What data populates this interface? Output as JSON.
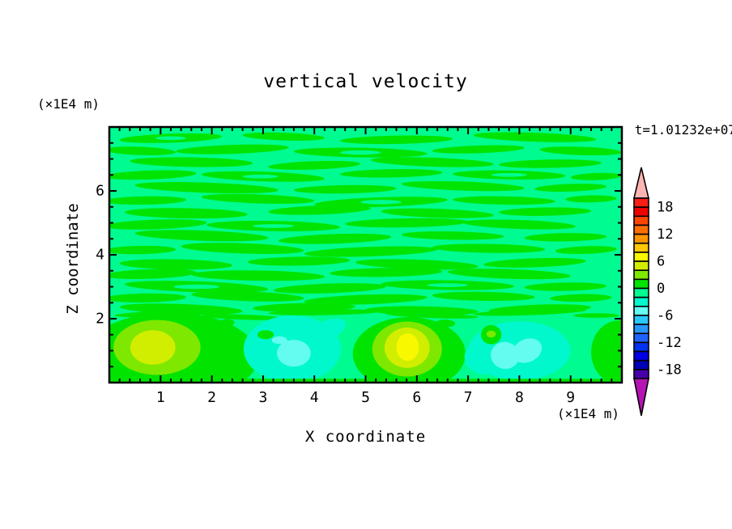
{
  "title": "vertical velocity",
  "timestamp": "t=1.01232e+07",
  "axes": {
    "x": {
      "label": "X coordinate",
      "unit": "(×1E4 m)",
      "range": [
        0,
        10
      ],
      "major_ticks": [
        1,
        2,
        3,
        4,
        5,
        6,
        7,
        8,
        9
      ],
      "tick_labels": [
        "1",
        "2",
        "3",
        "4",
        "5",
        "6",
        "7",
        "8",
        "9"
      ],
      "minor_step": 0.2
    },
    "z": {
      "label": "Z coordinate",
      "unit": "(×1E4 m)",
      "range": [
        0,
        8
      ],
      "major_ticks": [
        2,
        4,
        6
      ],
      "tick_labels": [
        "2",
        "4",
        "6"
      ],
      "minor_step": 0.5
    }
  },
  "colorbar": {
    "min": -20,
    "max": 20,
    "step": 2,
    "label_values": [
      18,
      12,
      6,
      0,
      -6,
      -12,
      -18
    ],
    "labels": [
      "18",
      "12",
      "6",
      "0",
      "-6",
      "-12",
      "-18"
    ],
    "colors_top_to_bottom": [
      "#fa1e14",
      "#f00000",
      "#ff4600",
      "#ff6e00",
      "#ff9600",
      "#ffc800",
      "#f8f800",
      "#d2ee00",
      "#7ee800",
      "#00e400",
      "#00fb90",
      "#00f8cc",
      "#64fcf0",
      "#28c8ff",
      "#2896ff",
      "#1e64ff",
      "#0032f0",
      "#0000e6",
      "#0000b4",
      "#4600aa"
    ],
    "over_color": "#ffb4b4",
    "under_color": "#b414b4"
  },
  "chart_data": {
    "type": "heatmap",
    "subtype": "filled_contour",
    "title": "vertical velocity",
    "xlabel": "X coordinate (×1E4 m)",
    "ylabel": "Z coordinate (×1E4 m)",
    "xlim": [
      0,
      10
    ],
    "ylim": [
      0,
      8
    ],
    "contour_interval": 2,
    "value_range_shown": [
      -20,
      20
    ],
    "annotation": "t=1.01232e+07",
    "legend_position": "right-colorbar",
    "grid": false,
    "background_band": "-2..0 (spring green) with 0..2 (green) streaks",
    "palette_index_key": "0=[18,20] ... 19=[-20,-18]",
    "bottom_features": [
      {
        "shape": "ellipse",
        "x": 1.2,
        "z": 0.8,
        "rx": 1.7,
        "ry": 1.4,
        "rot": 0,
        "c": 9,
        "note": "updraft green zone lower-left"
      },
      {
        "shape": "ellipse",
        "x": 0.93,
        "z": 1.1,
        "rx": 0.85,
        "ry": 0.86,
        "rot": 0,
        "c": 8,
        "note": "w=2..4"
      },
      {
        "shape": "ellipse",
        "x": 0.85,
        "z": 1.1,
        "rx": 0.44,
        "ry": 0.54,
        "rot": 0,
        "c": 7,
        "note": "w=4..6 core"
      },
      {
        "shape": "ellipse",
        "x": 3.57,
        "z": 1.05,
        "rx": 0.95,
        "ry": 1.05,
        "rot": 0,
        "c": 11,
        "note": "downdraft w=-4..-2"
      },
      {
        "shape": "ellipse",
        "x": 4.15,
        "z": 1.55,
        "rx": 0.5,
        "ry": 0.33,
        "rot": -25,
        "c": 11
      },
      {
        "shape": "ellipse",
        "x": 3.6,
        "z": 0.92,
        "rx": 0.33,
        "ry": 0.42,
        "rot": 0,
        "c": 12,
        "note": "w=-6..-4 core"
      },
      {
        "shape": "ellipse",
        "x": 3.32,
        "z": 1.33,
        "rx": 0.15,
        "ry": 0.12,
        "rot": 0,
        "c": 12
      },
      {
        "shape": "ellipse",
        "x": 5.85,
        "z": 0.9,
        "rx": 1.1,
        "ry": 1.15,
        "rot": 0,
        "c": 9,
        "note": "updraft green zone center"
      },
      {
        "shape": "ellipse",
        "x": 5.81,
        "z": 1.05,
        "rx": 0.68,
        "ry": 0.86,
        "rot": 0,
        "c": 8
      },
      {
        "shape": "ellipse",
        "x": 5.81,
        "z": 1.09,
        "rx": 0.44,
        "ry": 0.63,
        "rot": 0,
        "c": 7
      },
      {
        "shape": "ellipse",
        "x": 5.82,
        "z": 1.11,
        "rx": 0.22,
        "ry": 0.43,
        "rot": 0,
        "c": 6,
        "note": "w=6..8 yellow core"
      },
      {
        "shape": "ellipse",
        "x": 8.0,
        "z": 1.0,
        "rx": 1.0,
        "ry": 0.92,
        "rot": 0,
        "c": 11,
        "note": "downdraft right"
      },
      {
        "shape": "ellipse",
        "x": 7.35,
        "z": 0.8,
        "rx": 0.42,
        "ry": 0.55,
        "rot": 0,
        "c": 11
      },
      {
        "shape": "ellipse",
        "x": 7.72,
        "z": 0.85,
        "rx": 0.28,
        "ry": 0.42,
        "rot": 15,
        "c": 12
      },
      {
        "shape": "ellipse",
        "x": 8.15,
        "z": 1.0,
        "rx": 0.3,
        "ry": 0.36,
        "rot": -25,
        "c": 12
      },
      {
        "shape": "ellipse",
        "x": 9.95,
        "z": 0.95,
        "rx": 0.55,
        "ry": 1.0,
        "rot": 0,
        "c": 9,
        "note": "green at right edge"
      },
      {
        "shape": "ellipse",
        "x": 7.45,
        "z": 1.5,
        "rx": 0.2,
        "ry": 0.3,
        "rot": 0,
        "c": 9
      },
      {
        "shape": "ellipse",
        "x": 7.45,
        "z": 1.52,
        "rx": 0.09,
        "ry": 0.11,
        "rot": 0,
        "c": 8
      },
      {
        "shape": "ellipse",
        "x": 2.3,
        "z": 1.88,
        "rx": 0.14,
        "ry": 0.11,
        "rot": 0,
        "c": 9
      },
      {
        "shape": "ellipse",
        "x": 3.05,
        "z": 1.5,
        "rx": 0.16,
        "ry": 0.14,
        "rot": 0,
        "c": 9
      },
      {
        "shape": "ellipse",
        "x": 6.55,
        "z": 1.85,
        "rx": 0.2,
        "ry": 0.12,
        "rot": 0,
        "c": 9
      },
      {
        "shape": "rect",
        "x": 5.0,
        "z": 0.05,
        "rx": 5.0,
        "ry": 0.07,
        "rot": 0,
        "c": 9,
        "note": "green strip along bottom boundary"
      }
    ],
    "transition_filaments": [
      [
        1.0,
        2.15,
        0.9,
        0.09,
        -2
      ],
      [
        2.6,
        2.05,
        0.8,
        0.08,
        2
      ],
      [
        4.2,
        2.2,
        1.1,
        0.09,
        -1
      ],
      [
        6.3,
        2.1,
        0.9,
        0.08,
        2
      ],
      [
        8.2,
        2.2,
        1.1,
        0.09,
        -2
      ],
      [
        9.5,
        2.1,
        0.45,
        0.07,
        0
      ]
    ],
    "streaks": [
      [
        1.2,
        7.65,
        1.0,
        0.14,
        -2
      ],
      [
        3.4,
        7.7,
        0.8,
        0.12,
        2
      ],
      [
        5.6,
        7.6,
        1.1,
        0.13,
        -1
      ],
      [
        8.3,
        7.68,
        1.2,
        0.14,
        2
      ],
      [
        0.6,
        7.25,
        0.7,
        0.13,
        2
      ],
      [
        2.4,
        7.3,
        1.1,
        0.14,
        -2
      ],
      [
        4.9,
        7.2,
        1.3,
        0.15,
        1
      ],
      [
        7.2,
        7.3,
        0.9,
        0.12,
        -2
      ],
      [
        9.2,
        7.25,
        0.8,
        0.13,
        2
      ],
      [
        1.6,
        6.9,
        1.2,
        0.15,
        1
      ],
      [
        4.0,
        6.8,
        0.9,
        0.13,
        -2
      ],
      [
        6.3,
        6.9,
        1.2,
        0.14,
        2
      ],
      [
        8.6,
        6.85,
        1.0,
        0.13,
        -1
      ],
      [
        0.8,
        6.5,
        0.9,
        0.14,
        -2
      ],
      [
        3.0,
        6.45,
        1.2,
        0.15,
        2
      ],
      [
        5.5,
        6.55,
        1.0,
        0.13,
        -1
      ],
      [
        7.8,
        6.5,
        1.1,
        0.14,
        1
      ],
      [
        9.5,
        6.45,
        0.5,
        0.11,
        -2
      ],
      [
        1.9,
        6.1,
        1.4,
        0.16,
        2
      ],
      [
        4.6,
        6.05,
        1.0,
        0.13,
        -1
      ],
      [
        6.9,
        6.15,
        1.2,
        0.14,
        2
      ],
      [
        9.0,
        6.1,
        0.7,
        0.12,
        -2
      ],
      [
        0.7,
        5.7,
        0.8,
        0.13,
        -1
      ],
      [
        2.9,
        5.75,
        1.1,
        0.14,
        2
      ],
      [
        5.3,
        5.65,
        1.3,
        0.15,
        -2
      ],
      [
        7.7,
        5.7,
        1.0,
        0.13,
        1
      ],
      [
        9.4,
        5.75,
        0.5,
        0.11,
        -1
      ],
      [
        1.5,
        5.3,
        1.2,
        0.16,
        1
      ],
      [
        4.1,
        5.4,
        1.0,
        0.14,
        -2
      ],
      [
        6.4,
        5.3,
        1.1,
        0.14,
        2
      ],
      [
        8.5,
        5.35,
        0.9,
        0.13,
        -1
      ],
      [
        0.9,
        4.95,
        1.0,
        0.15,
        -2
      ],
      [
        3.2,
        4.9,
        1.3,
        0.16,
        1
      ],
      [
        5.8,
        5.0,
        1.2,
        0.14,
        -1
      ],
      [
        8.0,
        4.95,
        1.1,
        0.14,
        2
      ],
      [
        1.8,
        4.6,
        1.3,
        0.16,
        2
      ],
      [
        4.4,
        4.5,
        1.1,
        0.15,
        -2
      ],
      [
        6.7,
        4.6,
        1.0,
        0.13,
        1
      ],
      [
        8.9,
        4.55,
        0.8,
        0.13,
        -1
      ],
      [
        0.6,
        4.15,
        0.7,
        0.13,
        -1
      ],
      [
        2.6,
        4.2,
        1.2,
        0.16,
        2
      ],
      [
        5.1,
        4.1,
        1.3,
        0.15,
        -2
      ],
      [
        7.4,
        4.2,
        1.1,
        0.14,
        1
      ],
      [
        9.3,
        4.15,
        0.6,
        0.12,
        -2
      ],
      [
        1.3,
        3.7,
        1.1,
        0.16,
        1
      ],
      [
        3.7,
        3.8,
        1.0,
        0.14,
        -1
      ],
      [
        6.0,
        3.7,
        1.2,
        0.15,
        2
      ],
      [
        8.3,
        3.75,
        1.0,
        0.14,
        -2
      ],
      [
        0.8,
        3.4,
        0.9,
        0.15,
        -2
      ],
      [
        2.9,
        3.35,
        1.3,
        0.16,
        1
      ],
      [
        5.4,
        3.45,
        1.1,
        0.14,
        -1
      ],
      [
        7.8,
        3.4,
        1.2,
        0.15,
        2
      ],
      [
        1.7,
        3.0,
        1.4,
        0.17,
        2
      ],
      [
        4.3,
        2.95,
        1.1,
        0.15,
        -2
      ],
      [
        6.6,
        3.05,
        1.3,
        0.15,
        1
      ],
      [
        8.9,
        3.0,
        0.8,
        0.13,
        -1
      ],
      [
        0.7,
        2.65,
        0.8,
        0.14,
        -1
      ],
      [
        2.7,
        2.7,
        1.1,
        0.15,
        2
      ],
      [
        5.0,
        2.6,
        1.2,
        0.15,
        -2
      ],
      [
        7.3,
        2.7,
        1.0,
        0.14,
        1
      ],
      [
        9.2,
        2.65,
        0.6,
        0.12,
        -1
      ],
      [
        1.4,
        2.3,
        1.2,
        0.16,
        2
      ],
      [
        3.8,
        2.35,
        1.0,
        0.14,
        -1
      ],
      [
        6.1,
        2.25,
        1.1,
        0.14,
        1
      ],
      [
        8.4,
        2.3,
        1.0,
        0.14,
        -2
      ]
    ],
    "streak_holes": [
      [
        1.2,
        7.65,
        0.3,
        0.06,
        0
      ],
      [
        4.9,
        7.2,
        0.4,
        0.07,
        0
      ],
      [
        2.95,
        6.45,
        0.35,
        0.06,
        0
      ],
      [
        5.3,
        5.65,
        0.4,
        0.07,
        0
      ],
      [
        1.7,
        3.0,
        0.45,
        0.07,
        0
      ],
      [
        6.6,
        3.05,
        0.4,
        0.06,
        0
      ],
      [
        3.2,
        4.9,
        0.4,
        0.06,
        0
      ],
      [
        7.8,
        6.5,
        0.35,
        0.06,
        0
      ]
    ]
  }
}
